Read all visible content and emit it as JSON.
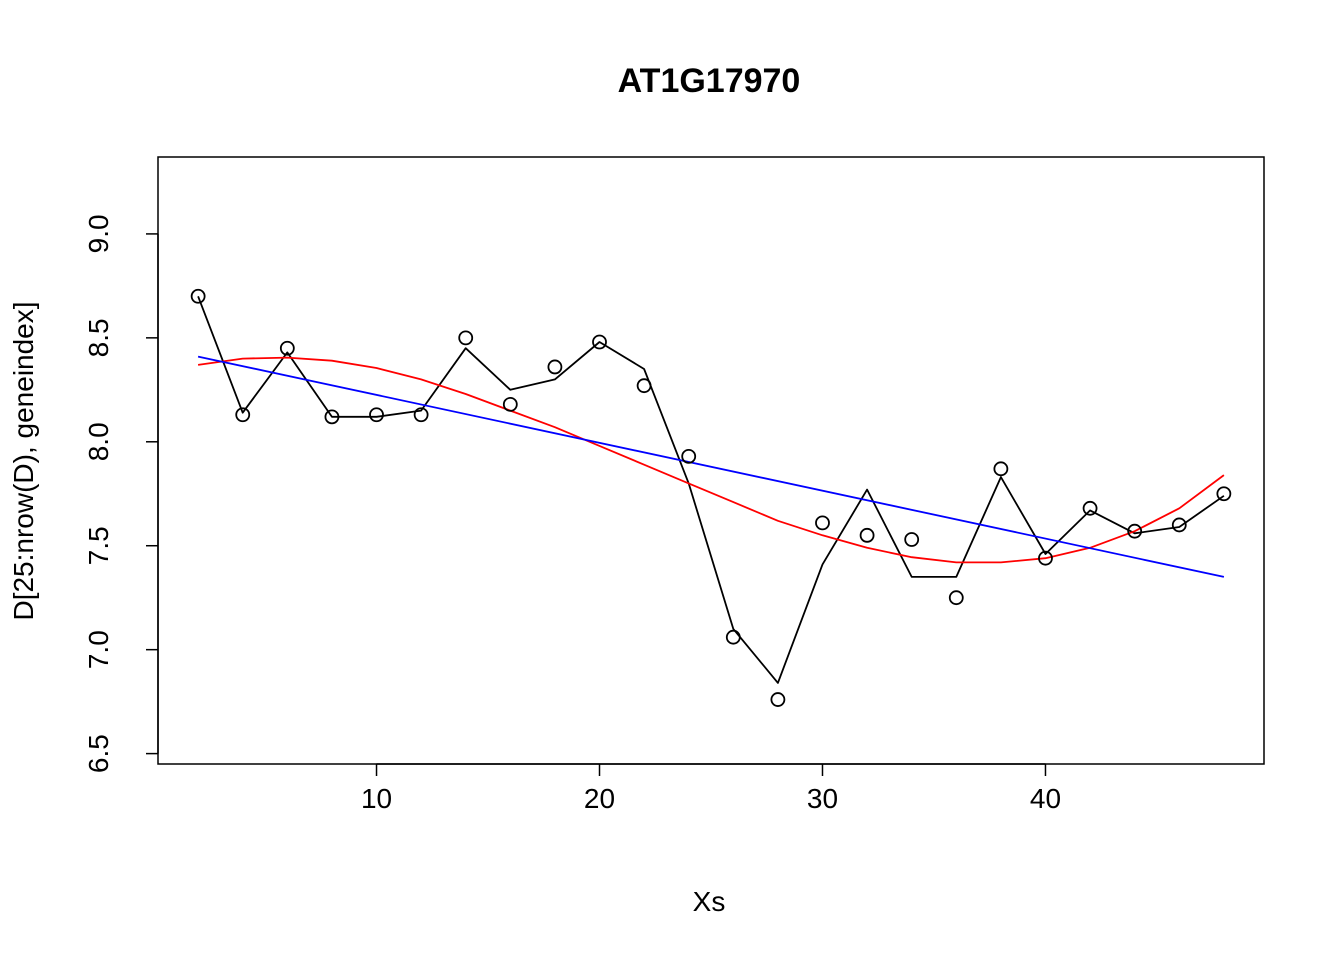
{
  "chart_data": {
    "type": "scatter",
    "title": "AT1G17970",
    "xlabel": "Xs",
    "ylabel": "D[25:nrow(D), geneindex]",
    "xlim": [
      0.2,
      49.8
    ],
    "ylim": [
      6.45,
      9.37
    ],
    "x_ticks": [
      10,
      20,
      30,
      40
    ],
    "x_tick_labels": [
      "10",
      "20",
      "30",
      "40"
    ],
    "y_ticks": [
      6.5,
      7.0,
      7.5,
      8.0,
      8.5,
      9.0
    ],
    "y_tick_labels": [
      "6.5",
      "7.0",
      "7.5",
      "8.0",
      "8.5",
      "9.0"
    ],
    "grid": false,
    "points": {
      "x": [
        2,
        4,
        6,
        8,
        10,
        12,
        14,
        16,
        18,
        20,
        22,
        24,
        26,
        28,
        30,
        32,
        34,
        36,
        38,
        40,
        42,
        44,
        46,
        48
      ],
      "y": [
        8.7,
        8.13,
        8.45,
        8.12,
        8.13,
        8.13,
        8.5,
        8.18,
        8.36,
        8.48,
        8.27,
        7.93,
        7.06,
        6.76,
        7.61,
        7.55,
        7.53,
        7.25,
        7.87,
        7.44,
        7.68,
        7.57,
        7.6,
        7.75
      ],
      "marker": "open-circle",
      "color": "#000000"
    },
    "series": [
      {
        "style": "line",
        "color": "#000000",
        "x": [
          2,
          4,
          6,
          8,
          10,
          12,
          14,
          16,
          18,
          20,
          22,
          24,
          26,
          28,
          30,
          32,
          34,
          36,
          38,
          40,
          42,
          44,
          46,
          48
        ],
        "values": [
          8.7,
          8.14,
          8.43,
          8.12,
          8.12,
          8.15,
          8.45,
          8.25,
          8.3,
          8.48,
          8.35,
          7.8,
          7.1,
          6.84,
          7.41,
          7.77,
          7.35,
          7.35,
          7.83,
          7.46,
          7.67,
          7.56,
          7.59,
          7.74
        ]
      },
      {
        "style": "line",
        "color": "#ff0000",
        "x": [
          2,
          4,
          6,
          8,
          10,
          12,
          14,
          16,
          18,
          20,
          22,
          24,
          26,
          28,
          30,
          32,
          34,
          36,
          38,
          40,
          42,
          44,
          46,
          48
        ],
        "values": [
          8.37,
          8.4,
          8.405,
          8.39,
          8.355,
          8.3,
          8.23,
          8.15,
          8.07,
          7.98,
          7.89,
          7.8,
          7.71,
          7.62,
          7.55,
          7.49,
          7.445,
          7.42,
          7.42,
          7.44,
          7.49,
          7.57,
          7.68,
          7.84
        ]
      },
      {
        "style": "line",
        "color": "#0000ff",
        "x": [
          2,
          48
        ],
        "values": [
          8.41,
          7.35
        ]
      }
    ]
  }
}
